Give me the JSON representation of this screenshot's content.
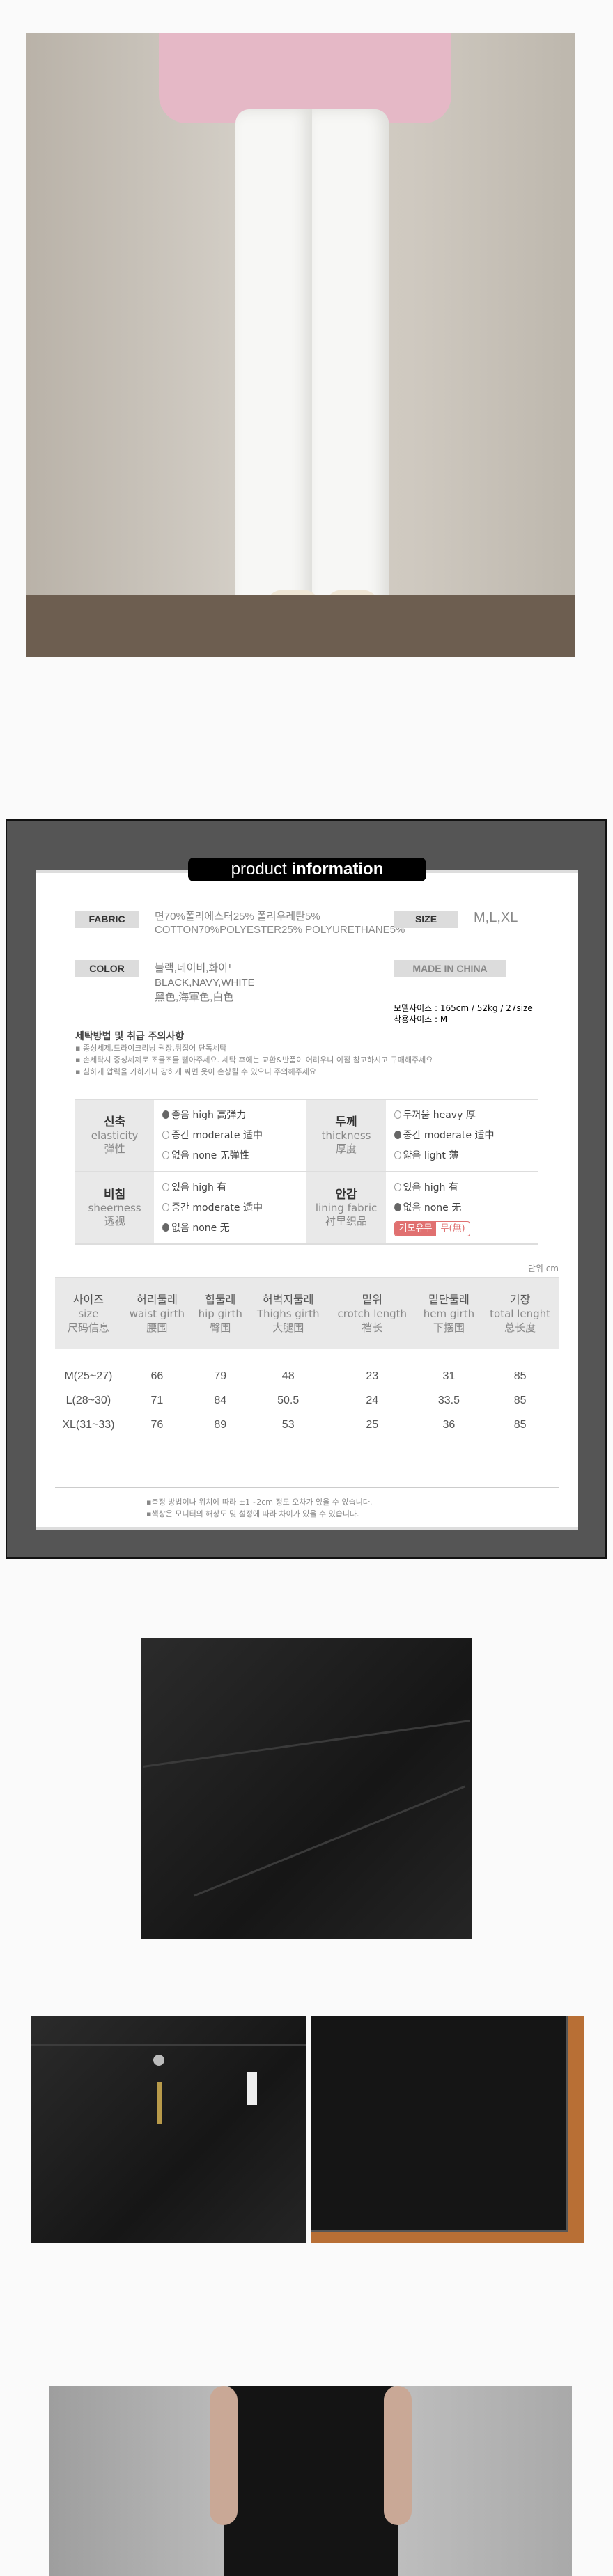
{
  "title": {
    "light": "product ",
    "bold": "information"
  },
  "fabric": {
    "label": "FABRIC",
    "line1": "면70%폴리에스터25% 폴리우레탄5%",
    "line2": "COTTON70%POLYESTER25% POLYURETHANE5%"
  },
  "size": {
    "label": "SIZE",
    "value": "M,L,XL"
  },
  "color": {
    "label": "COLOR",
    "line1": "블랙,네이비,화이트",
    "line2": "BLACK,NAVY,WHITE",
    "line3": "黑色,海軍色,白色"
  },
  "origin": {
    "label": "MADE IN CHINA"
  },
  "model": {
    "line1": "모델사이즈 : 165cm / 52kg / 27size",
    "line2": "착용사이즈 : M"
  },
  "care": {
    "heading": "세탁방법 및 취급 주의사항",
    "items": [
      "종성세제,드라이크리닝 권장,뒤집어 단독세탁",
      "손세탁시 중성세제로 조물조물 빨아주세요. 세탁 후에는 교환&반품이 어려우니 이점 참고하시고 구매해주세요",
      "심하게 압력을 가하거나 강하게 짜면 옷이 손상될 수 있으니 주의해주세요"
    ]
  },
  "attributes": [
    {
      "ko": "신축",
      "en": "elasticity",
      "zh": "弹性",
      "options": [
        {
          "label": "좋음 high 高弹力",
          "selected": true
        },
        {
          "label": "중간 moderate 适中",
          "selected": false
        },
        {
          "label": "없음 none 无弹性",
          "selected": false
        }
      ]
    },
    {
      "ko": "두께",
      "en": "thickness",
      "zh": "厚度",
      "options": [
        {
          "label": "두꺼움 heavy 厚",
          "selected": false
        },
        {
          "label": "중간 moderate 适中",
          "selected": true
        },
        {
          "label": "얇음 light 薄",
          "selected": false
        }
      ]
    },
    {
      "ko": "비침",
      "en": "sheerness",
      "zh": "透视",
      "options": [
        {
          "label": "있음 high 有",
          "selected": false
        },
        {
          "label": "중간 moderate 适中",
          "selected": false
        },
        {
          "label": "없음 none 无",
          "selected": true
        }
      ]
    },
    {
      "ko": "안감",
      "en": "lining fabric",
      "zh": "衬里织品",
      "options": [
        {
          "label": "있음 high 有",
          "selected": false
        },
        {
          "label": "없음 none 无",
          "selected": true
        }
      ],
      "badge": {
        "label": "기모유무",
        "value": "무(無)"
      }
    }
  ],
  "unit": "단위 cm",
  "size_table": {
    "headers": [
      [
        "사이즈",
        "size",
        "尺码信息"
      ],
      [
        "허리둘레",
        "waist girth",
        "腰围"
      ],
      [
        "힙둘레",
        "hip girth",
        "臀围"
      ],
      [
        "허벅지둘레",
        "Thighs girth",
        "大腿围"
      ],
      [
        "밑위",
        "crotch length",
        "裆长"
      ],
      [
        "밑단둘레",
        "hem girth",
        "下摆围"
      ],
      [
        "기장",
        "total lenght",
        "总长度"
      ]
    ],
    "rows": [
      [
        "M(25~27)",
        "66",
        "79",
        "48",
        "23",
        "31",
        "85"
      ],
      [
        "L(28~30)",
        "71",
        "84",
        "50.5",
        "24",
        "33.5",
        "85"
      ],
      [
        "XL(31~33)",
        "76",
        "89",
        "53",
        "25",
        "36",
        "85"
      ]
    ]
  },
  "notes": [
    "측정 방법이나 위치에 따라 ±1~2cm 정도 오차가 있을 수 있습니다.",
    "색상은 모니터의 해상도 및 설정에 따라 차이가 있을 수 있습니다."
  ],
  "colors": {
    "panel": "#555555",
    "badge": "#e07070",
    "label_bg": "#dcdcdc"
  }
}
